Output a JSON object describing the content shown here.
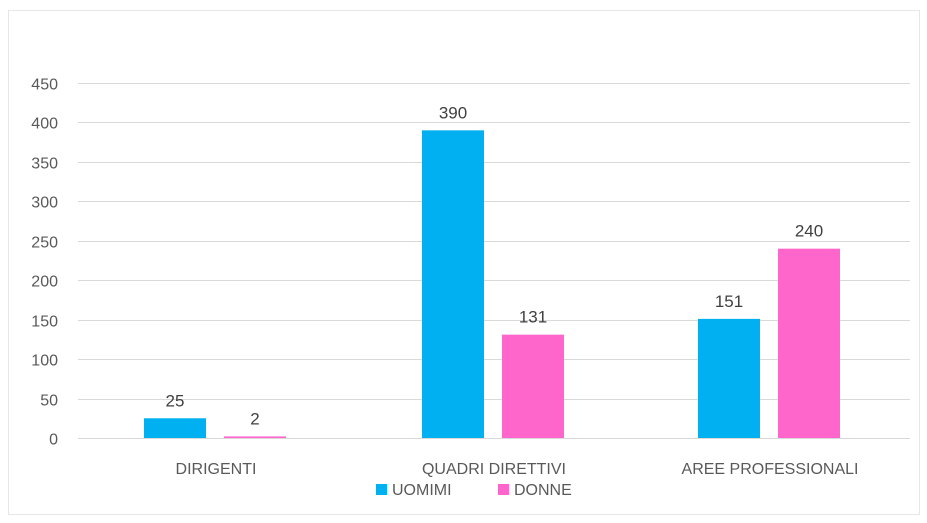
{
  "chart_data": {
    "type": "bar",
    "categories": [
      "DIRIGENTI",
      "QUADRI DIRETTIVI",
      "AREE PROFESSIONALI"
    ],
    "series": [
      {
        "name": "UOMIMI",
        "values": [
          25,
          390,
          151
        ],
        "color": "#00b0f0"
      },
      {
        "name": "DONNE",
        "values": [
          2,
          131,
          240
        ],
        "color": "#ff66cc"
      }
    ],
    "yticks": [
      0,
      50,
      100,
      150,
      200,
      250,
      300,
      350,
      400,
      450
    ],
    "ylim": [
      0,
      450
    ],
    "grid": true,
    "legend_position": "bottom",
    "data_labels": true
  }
}
